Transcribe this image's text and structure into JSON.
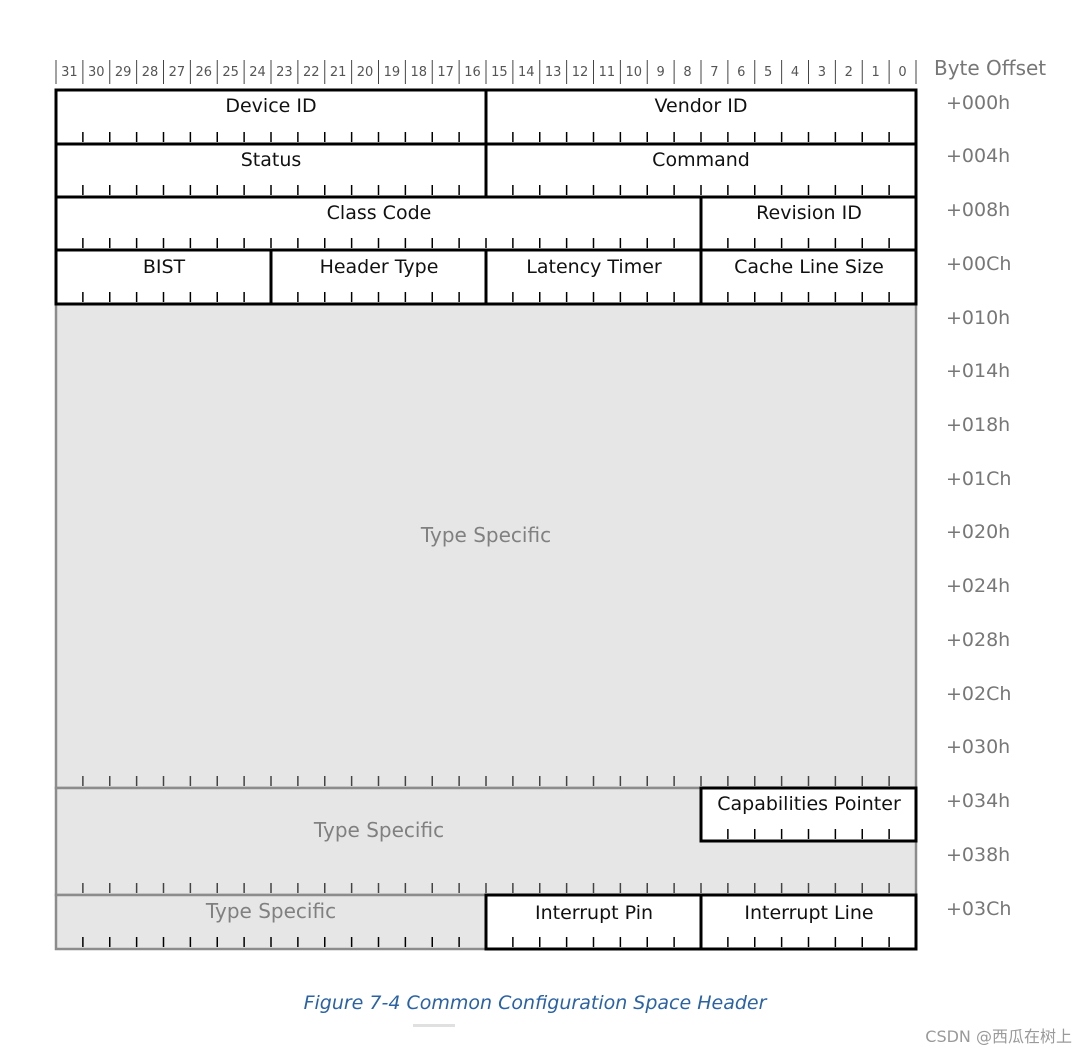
{
  "header": {
    "byte_offset_label": "Byte Offset",
    "bit_numbers": [
      "31",
      "30",
      "29",
      "28",
      "27",
      "26",
      "25",
      "24",
      "23",
      "22",
      "21",
      "20",
      "19",
      "18",
      "17",
      "16",
      "15",
      "14",
      "13",
      "12",
      "11",
      "10",
      "9",
      "8",
      "7",
      "6",
      "5",
      "4",
      "3",
      "2",
      "1",
      "0"
    ]
  },
  "offsets": [
    "+000h",
    "+004h",
    "+008h",
    "+00Ch",
    "+010h",
    "+014h",
    "+018h",
    "+01Ch",
    "+020h",
    "+024h",
    "+028h",
    "+02Ch",
    "+030h",
    "+034h",
    "+038h",
    "+03Ch"
  ],
  "fields": {
    "device_id": "Device ID",
    "vendor_id": "Vendor ID",
    "status": "Status",
    "command": "Command",
    "class_code": "Class Code",
    "revision_id": "Revision ID",
    "bist": "BIST",
    "header_type": "Header Type",
    "latency_timer": "Latency Timer",
    "cache_line_size": "Cache Line Size",
    "type_specific_main": "Type Specific",
    "capabilities_pointer": "Capabilities Pointer",
    "type_specific_mid": "Type Specific",
    "type_specific_low": "Type Specific",
    "interrupt_pin": "Interrupt Pin",
    "interrupt_line": "Interrupt Line"
  },
  "colors": {
    "type_specific_fill": "#e6e6e6",
    "border_dark": "#000000",
    "border_gray": "#8c8c8c",
    "caption": "#2a62a6"
  },
  "caption": "Figure 7-4 Common Configuration Space Header",
  "watermark": "CSDN @西瓜在树上"
}
